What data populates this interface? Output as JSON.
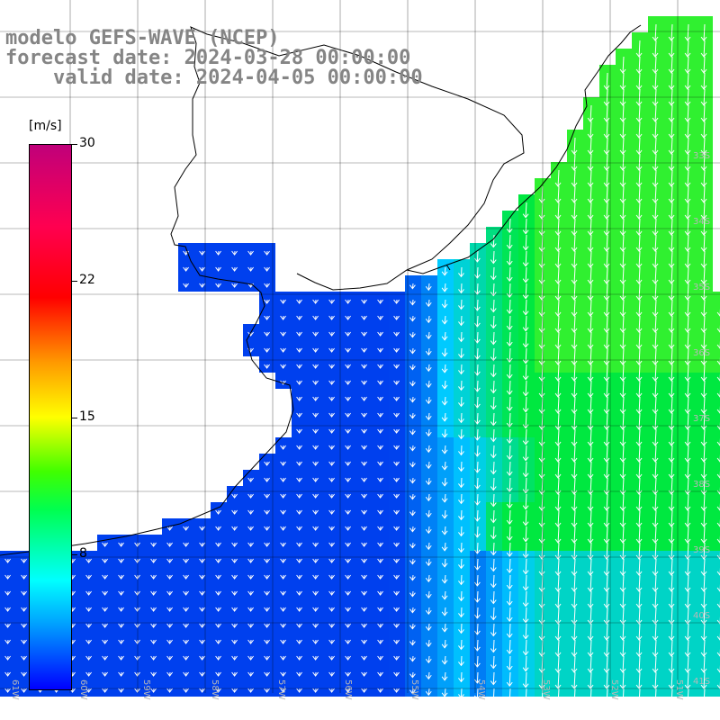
{
  "title": {
    "line1": "modelo GEFS-WAVE (NCEP)",
    "line2": "forecast date: 2024-03-28 00:00:00",
    "line3": "    valid date: 2024-04-05 00:00:00"
  },
  "colorbar": {
    "unit": "[m/s]",
    "labels": [
      {
        "text": "30",
        "value": 30
      },
      {
        "text": "22",
        "value": 22
      },
      {
        "text": "15",
        "value": 15
      },
      {
        "text": "8",
        "value": 8
      }
    ],
    "min": 0,
    "max": 30
  },
  "map": {
    "lat_labels": [
      "33S",
      "34S",
      "35S",
      "36S",
      "37S",
      "38S",
      "39S",
      "40S",
      "41S"
    ],
    "lon_labels": [
      "61W",
      "60W",
      "59W",
      "58W",
      "57W",
      "56W",
      "55W",
      "54W",
      "53W",
      "52W",
      "51W"
    ],
    "colors": {
      "land": "#ffffff",
      "calm": "#0040ee",
      "mid": "#00ccff",
      "strong": "#00e840",
      "grid": "#000000",
      "arrow": "#ffffff"
    }
  }
}
